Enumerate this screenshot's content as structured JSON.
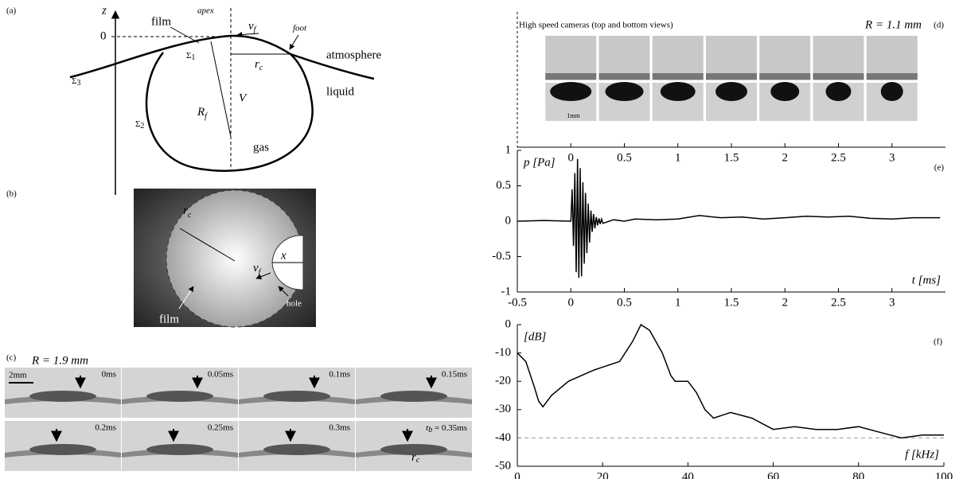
{
  "panel_a": {
    "label": "(a)",
    "z": "z",
    "zero": "0",
    "film": "film",
    "apex": "apex",
    "v_f": {
      "base": "v",
      "sub": "f"
    },
    "foot": "foot",
    "sigma_1": {
      "base": "Σ",
      "sub": "1"
    },
    "sigma_2": {
      "base": "Σ",
      "sub": "2"
    },
    "sigma_3": {
      "base": "Σ",
      "sub": "3"
    },
    "r_c": {
      "base": "r",
      "sub": "c"
    },
    "atmosphere": "atmosphere",
    "R_f": {
      "base": "R",
      "sub": "f"
    },
    "V": "V",
    "liquid": "liquid",
    "gas": "gas"
  },
  "panel_b": {
    "label": "(b)",
    "r_c": {
      "base": "r",
      "sub": "c"
    },
    "x": "x",
    "v_f": {
      "base": "v",
      "sub": "f"
    },
    "film": "film",
    "hole": "hole"
  },
  "panel_c": {
    "label": "(c)",
    "radius": "R = 1.9 mm",
    "scale_bar": "2mm",
    "frames": [
      "0ms",
      "0.05ms",
      "0.1ms",
      "0.15ms",
      "0.2ms",
      "0.25ms",
      "0.3ms"
    ],
    "last_frame": {
      "base": "t",
      "sub": "b",
      "rest": " = 0.35ms"
    },
    "r_c": {
      "base": "r",
      "sub": "c"
    }
  },
  "chart_data": [
    {
      "type": "image-strip",
      "title": "High speed cameras (top and bottom views)",
      "annotation": "R = 1.1 mm",
      "label": "(d)",
      "scale_bar": "1mm",
      "xlim": [
        -0.5,
        3.5
      ],
      "xticks": [
        0,
        0.5,
        1,
        1.5,
        2,
        2.5,
        3
      ]
    },
    {
      "type": "line",
      "label": "(e)",
      "y_label": "p [Pa]",
      "x_label": "t [ms]",
      "color": "#000000",
      "x": [
        -0.5,
        -0.25,
        0,
        0.0125,
        0.025,
        0.0375,
        0.05,
        0.0625,
        0.075,
        0.0875,
        0.1,
        0.1125,
        0.125,
        0.1375,
        0.15,
        0.1625,
        0.175,
        0.1875,
        0.2,
        0.2125,
        0.225,
        0.2375,
        0.25,
        0.2625,
        0.275,
        0.2875,
        0.3,
        0.4,
        0.5,
        0.6,
        0.8,
        1.0,
        1.2,
        1.4,
        1.6,
        1.8,
        2.0,
        2.2,
        2.4,
        2.6,
        2.8,
        3.0,
        3.2,
        3.45
      ],
      "values": [
        0,
        0.01,
        0,
        0.45,
        -0.35,
        0.68,
        -0.72,
        0.88,
        -0.8,
        0.75,
        -0.78,
        0.55,
        -0.6,
        0.4,
        -0.45,
        0.25,
        -0.3,
        0.15,
        -0.15,
        0.1,
        -0.1,
        0.06,
        -0.06,
        0.04,
        -0.04,
        0.03,
        -0.03,
        0.02,
        0,
        0.03,
        0.02,
        0.03,
        0.08,
        0.05,
        0.06,
        0.03,
        0.05,
        0.07,
        0.06,
        0.07,
        0.04,
        0.03,
        0.05,
        0.05
      ],
      "xlim": [
        -0.5,
        3.5
      ],
      "ylim": [
        -1,
        1
      ],
      "xticks": [
        -0.5,
        0,
        0.5,
        1,
        1.5,
        2,
        2.5,
        3
      ],
      "yticks": [
        -1,
        -0.5,
        0,
        0.5,
        1
      ]
    },
    {
      "type": "line",
      "label": "(f)",
      "y_label": "[dB]",
      "x_label": "f [kHz]",
      "color": "#000000",
      "reference_line": -40,
      "x": [
        0,
        2,
        4,
        5,
        6,
        8,
        12,
        18,
        24,
        27,
        29,
        31,
        34,
        36,
        37,
        40,
        42,
        44,
        46,
        48,
        50,
        55,
        60,
        65,
        70,
        75,
        80,
        85,
        90,
        95,
        100
      ],
      "values": [
        -10,
        -13,
        -22,
        -27,
        -29,
        -25,
        -20,
        -16,
        -13,
        -6,
        0,
        -2,
        -10,
        -18,
        -20,
        -20,
        -24,
        -30,
        -33,
        -32,
        -31,
        -33,
        -37,
        -36,
        -37,
        -37,
        -36,
        -38,
        -40,
        -39,
        -39
      ],
      "xlim": [
        0,
        100
      ],
      "ylim": [
        -50,
        0
      ],
      "xticks": [
        0,
        20,
        40,
        60,
        80,
        100
      ],
      "yticks": [
        0,
        -10,
        -20,
        -30,
        -40,
        -50
      ]
    }
  ]
}
